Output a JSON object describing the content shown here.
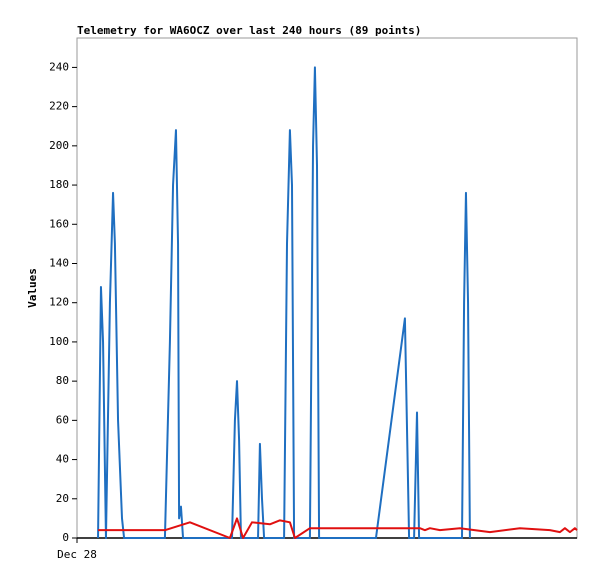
{
  "chart_data": {
    "type": "line",
    "title": "Telemetry for WA6OCZ over last 240 hours (89 points)",
    "y_label": "Values",
    "xlim": [
      0,
      240
    ],
    "xticks": [
      {
        "value": 0,
        "label": "Dec 28"
      }
    ],
    "ylim": [
      0,
      255
    ],
    "yticks": [
      0,
      20,
      40,
      60,
      80,
      100,
      120,
      140,
      160,
      180,
      200,
      220,
      240
    ],
    "series": [
      {
        "color": "#1f6fc1",
        "x": [
          10.1,
          11.5,
          12.5,
          13.9,
          15.8,
          17.3,
          18.2,
          19.7,
          21.6,
          22.6,
          42.2,
          44.6,
          46.1,
          47.5,
          48.5,
          49,
          49.9,
          50.9,
          74.4,
          75.8,
          76.8,
          77.8,
          78.7,
          86.9,
          87.8,
          88.8,
          89.8,
          99.4,
          100.8,
          102.2,
          103.2,
          104.2,
          111.8,
          113.3,
          114.2,
          115.2,
          116.2,
          143.5,
          157.4,
          159.4,
          161.8,
          163.2,
          164.2,
          184.8,
          185.8,
          186.7,
          187.7,
          188.6
        ],
        "values": [
          0,
          128,
          100,
          0,
          120,
          176,
          150,
          60,
          10,
          0,
          0,
          100,
          180,
          208,
          150,
          10,
          16,
          0,
          0,
          60,
          80,
          50,
          0,
          0,
          48,
          20,
          0,
          0,
          150,
          208,
          180,
          0,
          0,
          200,
          240,
          190,
          0,
          0,
          112,
          0,
          0,
          64,
          0,
          0,
          120,
          176,
          120,
          0
        ]
      },
      {
        "color": "#e01010",
        "x": [
          10.1,
          42.2,
          54.2,
          73.4,
          76.8,
          79.7,
          84,
          92.6,
          97.4,
          102.2,
          104.6,
          111.8,
          164.6,
          167,
          169.4,
          174.2,
          183.8,
          198.2,
          212.6,
          227,
          231.8,
          234.2,
          236.6,
          239,
          240
        ],
        "values": [
          4,
          4,
          8,
          0,
          10,
          0,
          8,
          7,
          9,
          8,
          0,
          5,
          5,
          4,
          5,
          4,
          5,
          3,
          5,
          4,
          3,
          5,
          3,
          5,
          4
        ]
      }
    ]
  }
}
